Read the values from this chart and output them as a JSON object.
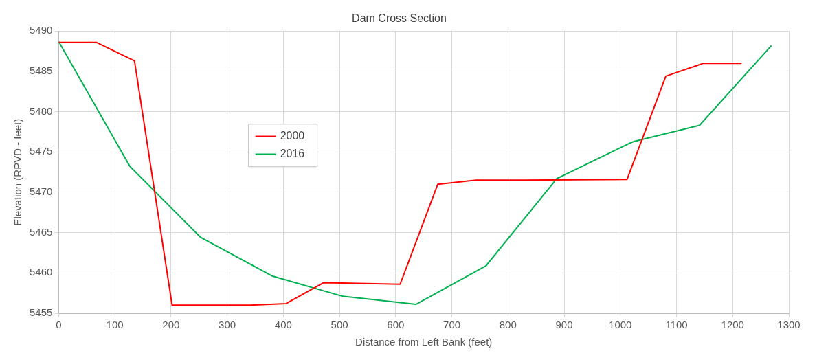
{
  "chart_data": {
    "type": "line",
    "title": "Dam Cross Section",
    "xlabel": "Distance from Left Bank (feet)",
    "ylabel": "Elevation (RPVD - feet)",
    "xlim": [
      0,
      1300
    ],
    "xticks": [
      0,
      100,
      200,
      300,
      400,
      500,
      600,
      700,
      800,
      900,
      1000,
      1100,
      1200,
      1300
    ],
    "ylim": [
      5455,
      5490
    ],
    "yticks": [
      5455,
      5460,
      5465,
      5470,
      5475,
      5480,
      5485,
      5490
    ],
    "grid": true,
    "legend": "top left",
    "marker": "none",
    "series": [
      {
        "name": "2000",
        "color": "#ff0000",
        "x": [
          0,
          67,
          135,
          202,
          341,
          405,
          472,
          608,
          675,
          743,
          808,
          1012,
          1081,
          1148,
          1216
        ],
        "values": [
          5488.6,
          5488.6,
          5486.3,
          5456.0,
          5456.0,
          5456.2,
          5458.8,
          5458.6,
          5471.0,
          5471.5,
          5471.5,
          5471.6,
          5484.4,
          5486.0,
          5486.0
        ]
      },
      {
        "name": "2016",
        "color": "#00b050",
        "x": [
          0,
          127,
          253,
          381,
          506,
          636,
          761,
          887,
          1017,
          1024,
          1141,
          1269
        ],
        "values": [
          5488.7,
          5473.2,
          5464.4,
          5459.6,
          5457.1,
          5456.1,
          5460.9,
          5471.7,
          5476.1,
          5476.3,
          5478.3,
          5488.2
        ]
      }
    ]
  }
}
